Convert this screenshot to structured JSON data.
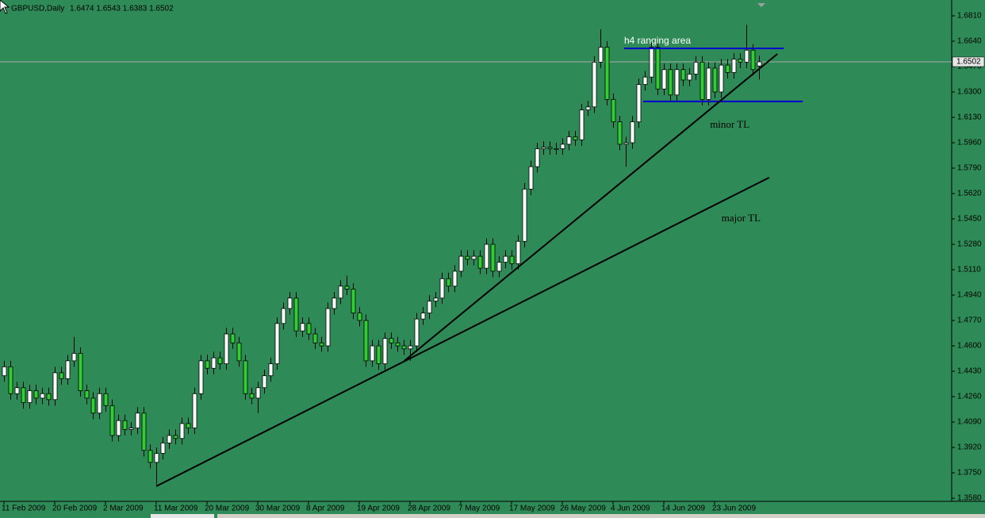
{
  "chart_data": {
    "type": "candlestick",
    "title": "GBPUSD,Daily",
    "subtitle": "1.6474 1.6543 1.6383 1.6502",
    "background": "#2e8b57",
    "up_color": "#ffffff",
    "down_color": "#32cd32",
    "wick_color": "#000000",
    "last_price": 1.6502,
    "categories": [
      "11 Feb 2009",
      null,
      null,
      null,
      null,
      null,
      null,
      null,
      "20 Feb 2009",
      null,
      null,
      null,
      null,
      null,
      null,
      null,
      "2 Mar 2009",
      null,
      null,
      null,
      null,
      null,
      null,
      null,
      "11 Mar 2009",
      null,
      null,
      null,
      null,
      null,
      null,
      null,
      "20 Mar 2009",
      null,
      null,
      null,
      null,
      null,
      null,
      null,
      "30 Mar 2009",
      null,
      null,
      null,
      null,
      null,
      null,
      null,
      "8 Apr 2009",
      null,
      null,
      null,
      null,
      null,
      null,
      null,
      "19 Apr 2009",
      null,
      null,
      null,
      null,
      null,
      null,
      null,
      "28 Apr 2009",
      null,
      null,
      null,
      null,
      null,
      null,
      null,
      "7 May 2009",
      null,
      null,
      null,
      null,
      null,
      null,
      null,
      "17 May 2009",
      null,
      null,
      null,
      null,
      null,
      null,
      null,
      "26 May 2009",
      null,
      null,
      null,
      null,
      null,
      null,
      null,
      "4 Jun 2009",
      null,
      null,
      null,
      null,
      null,
      null,
      null,
      "14 Jun 2009",
      null,
      null,
      null,
      null,
      null,
      null,
      null,
      "23 Jun 2009",
      null,
      null,
      null,
      null,
      null,
      null,
      null
    ],
    "open": [
      1.44,
      1.446,
      1.428,
      1.432,
      1.422,
      1.43,
      1.425,
      1.428,
      1.424,
      1.442,
      1.438,
      1.45,
      1.455,
      1.43,
      1.425,
      1.415,
      1.428,
      1.42,
      1.4,
      1.41,
      1.404,
      1.405,
      1.415,
      1.39,
      1.382,
      1.388,
      1.395,
      1.4,
      1.398,
      1.408,
      1.405,
      1.428,
      1.45,
      1.445,
      1.452,
      1.448,
      1.468,
      1.462,
      1.45,
      1.428,
      1.425,
      1.432,
      1.44,
      1.448,
      1.475,
      1.485,
      1.492,
      1.47,
      1.475,
      1.468,
      1.462,
      1.46,
      1.485,
      1.492,
      1.5,
      1.498,
      1.482,
      1.477,
      1.45,
      1.46,
      1.448,
      1.465,
      1.462,
      1.46,
      1.458,
      1.46,
      1.478,
      1.482,
      1.49,
      1.492,
      1.505,
      1.5,
      1.51,
      1.52,
      1.518,
      1.52,
      1.512,
      1.528,
      1.51,
      1.516,
      1.52,
      1.515,
      1.53,
      1.565,
      1.58,
      1.592,
      1.593,
      1.592,
      1.592,
      1.595,
      1.6,
      1.598,
      1.618,
      1.62,
      1.65,
      1.66,
      1.625,
      1.61,
      1.595,
      1.596,
      1.61,
      1.635,
      1.64,
      1.66,
      1.632,
      1.645,
      1.628,
      1.645,
      1.638,
      1.642,
      1.65,
      1.625,
      1.646,
      1.63,
      1.648,
      1.643,
      1.652,
      1.65,
      1.658,
      1.6474
    ],
    "high": [
      1.45,
      1.45,
      1.436,
      1.436,
      1.434,
      1.434,
      1.432,
      1.432,
      1.446,
      1.446,
      1.454,
      1.466,
      1.459,
      1.434,
      1.429,
      1.432,
      1.432,
      1.424,
      1.414,
      1.414,
      1.409,
      1.419,
      1.419,
      1.394,
      1.392,
      1.399,
      1.404,
      1.404,
      1.412,
      1.412,
      1.432,
      1.454,
      1.454,
      1.456,
      1.456,
      1.472,
      1.472,
      1.466,
      1.454,
      1.432,
      1.436,
      1.444,
      1.452,
      1.479,
      1.489,
      1.496,
      1.496,
      1.479,
      1.479,
      1.472,
      1.466,
      1.489,
      1.496,
      1.504,
      1.507,
      1.502,
      1.486,
      1.481,
      1.464,
      1.464,
      1.469,
      1.469,
      1.466,
      1.464,
      1.464,
      1.482,
      1.486,
      1.494,
      1.496,
      1.509,
      1.509,
      1.514,
      1.524,
      1.524,
      1.524,
      1.524,
      1.532,
      1.532,
      1.52,
      1.524,
      1.524,
      1.534,
      1.569,
      1.584,
      1.596,
      1.597,
      1.597,
      1.596,
      1.599,
      1.604,
      1.604,
      1.622,
      1.624,
      1.654,
      1.672,
      1.664,
      1.629,
      1.614,
      1.6,
      1.614,
      1.639,
      1.644,
      1.664,
      1.664,
      1.649,
      1.649,
      1.649,
      1.649,
      1.646,
      1.654,
      1.654,
      1.65,
      1.65,
      1.652,
      1.652,
      1.656,
      1.656,
      1.675,
      1.662,
      1.6543
    ],
    "low": [
      1.436,
      1.424,
      1.424,
      1.418,
      1.418,
      1.421,
      1.421,
      1.42,
      1.42,
      1.434,
      1.434,
      1.446,
      1.426,
      1.421,
      1.411,
      1.411,
      1.416,
      1.396,
      1.396,
      1.4,
      1.4,
      1.401,
      1.386,
      1.378,
      1.367,
      1.384,
      1.391,
      1.394,
      1.394,
      1.401,
      1.401,
      1.424,
      1.441,
      1.441,
      1.444,
      1.444,
      1.458,
      1.446,
      1.424,
      1.421,
      1.415,
      1.428,
      1.436,
      1.444,
      1.471,
      1.481,
      1.466,
      1.466,
      1.464,
      1.458,
      1.456,
      1.456,
      1.481,
      1.488,
      1.494,
      1.478,
      1.473,
      1.446,
      1.446,
      1.444,
      1.444,
      1.458,
      1.456,
      1.454,
      1.45,
      1.456,
      1.474,
      1.478,
      1.486,
      1.488,
      1.496,
      1.496,
      1.506,
      1.514,
      1.514,
      1.508,
      1.508,
      1.506,
      1.506,
      1.512,
      1.511,
      1.511,
      1.526,
      1.561,
      1.576,
      1.588,
      1.588,
      1.588,
      1.588,
      1.591,
      1.594,
      1.594,
      1.614,
      1.616,
      1.646,
      1.621,
      1.606,
      1.591,
      1.58,
      1.592,
      1.606,
      1.631,
      1.636,
      1.628,
      1.628,
      1.624,
      1.624,
      1.634,
      1.634,
      1.638,
      1.621,
      1.621,
      1.626,
      1.626,
      1.639,
      1.639,
      1.646,
      1.646,
      1.641,
      1.6383
    ],
    "close": [
      1.446,
      1.428,
      1.432,
      1.422,
      1.43,
      1.425,
      1.428,
      1.424,
      1.442,
      1.438,
      1.45,
      1.455,
      1.43,
      1.425,
      1.415,
      1.428,
      1.42,
      1.4,
      1.41,
      1.404,
      1.405,
      1.415,
      1.39,
      1.382,
      1.388,
      1.395,
      1.4,
      1.398,
      1.408,
      1.405,
      1.428,
      1.45,
      1.445,
      1.452,
      1.448,
      1.468,
      1.462,
      1.45,
      1.428,
      1.425,
      1.432,
      1.44,
      1.448,
      1.475,
      1.485,
      1.492,
      1.47,
      1.475,
      1.468,
      1.462,
      1.46,
      1.485,
      1.492,
      1.5,
      1.498,
      1.482,
      1.477,
      1.45,
      1.46,
      1.448,
      1.465,
      1.462,
      1.46,
      1.458,
      1.46,
      1.478,
      1.482,
      1.49,
      1.492,
      1.505,
      1.5,
      1.51,
      1.52,
      1.518,
      1.52,
      1.512,
      1.528,
      1.51,
      1.516,
      1.52,
      1.515,
      1.53,
      1.565,
      1.58,
      1.592,
      1.593,
      1.592,
      1.592,
      1.595,
      1.6,
      1.598,
      1.618,
      1.62,
      1.65,
      1.66,
      1.625,
      1.61,
      1.595,
      1.596,
      1.61,
      1.635,
      1.64,
      1.66,
      1.632,
      1.645,
      1.628,
      1.645,
      1.638,
      1.642,
      1.65,
      1.625,
      1.646,
      1.63,
      1.648,
      1.643,
      1.652,
      1.65,
      1.658,
      1.645,
      1.6502
    ],
    "xlim": [
      -0.625,
      149.375
    ],
    "ylim": [
      1.3559,
      1.6916
    ],
    "yticks": [
      {
        "value": 1.681,
        "label": "1.6810"
      },
      {
        "value": 1.664,
        "label": "1.6640"
      },
      {
        "value": 1.647,
        "label": "1.6470"
      },
      {
        "value": 1.63,
        "label": "1.6300"
      },
      {
        "value": 1.613,
        "label": "1.6130"
      },
      {
        "value": 1.596,
        "label": "1.5960"
      },
      {
        "value": 1.579,
        "label": "1.5790"
      },
      {
        "value": 1.562,
        "label": "1.5620"
      },
      {
        "value": 1.545,
        "label": "1.5450"
      },
      {
        "value": 1.528,
        "label": "1.5280"
      },
      {
        "value": 1.511,
        "label": "1.5110"
      },
      {
        "value": 1.494,
        "label": "1.4940"
      },
      {
        "value": 1.477,
        "label": "1.4770"
      },
      {
        "value": 1.46,
        "label": "1.4600"
      },
      {
        "value": 1.443,
        "label": "1.4430"
      },
      {
        "value": 1.426,
        "label": "1.4260"
      },
      {
        "value": 1.409,
        "label": "1.4090"
      },
      {
        "value": 1.392,
        "label": "1.3920"
      },
      {
        "value": 1.375,
        "label": "1.3750"
      },
      {
        "value": 1.358,
        "label": "1.3580"
      }
    ],
    "trendlines": [
      {
        "name": "major TL",
        "color": "#000000",
        "x": [
          24,
          120.6
        ],
        "y": [
          1.366,
          1.5727
        ]
      },
      {
        "name": "minor TL",
        "color": "#000000",
        "x": [
          63.1,
          121.9
        ],
        "y": [
          1.45,
          1.6555
        ]
      }
    ],
    "range": {
      "name": "h4 ranging area",
      "color": "#0000cc",
      "lines": [
        {
          "x": [
            97.75,
            122.9
          ],
          "y": [
            1.6592,
            1.6592
          ]
        },
        {
          "x": [
            100.75,
            125.9
          ],
          "y": [
            1.6237,
            1.6237
          ]
        }
      ]
    }
  }
}
